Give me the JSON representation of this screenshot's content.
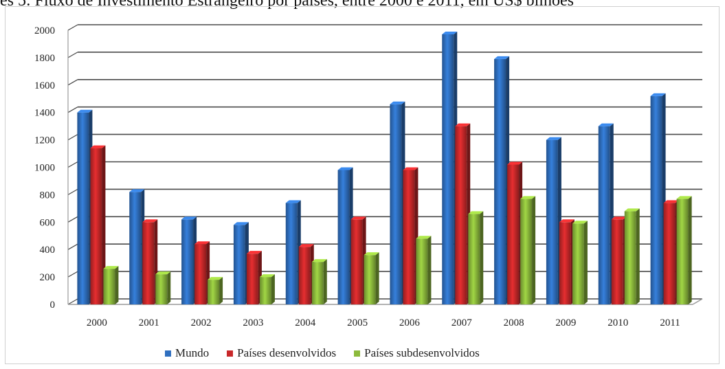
{
  "header": {
    "title_fragment": "es 5: Fluxo de Investimento Estrangeiro por países, entre 2000 e 2011, em US$ bilhões"
  },
  "colors": {
    "mundo": "#2f6fbf",
    "desenvolvidos": "#c8282a",
    "subdesenvolvidos": "#8cba3c",
    "grid": "#4a4a4a",
    "axis": "#9a9a9a"
  },
  "chart_data": {
    "type": "bar",
    "categories": [
      "2000",
      "2001",
      "2002",
      "2003",
      "2004",
      "2005",
      "2006",
      "2007",
      "2008",
      "2009",
      "2010",
      "2011"
    ],
    "series": [
      {
        "name": "Mundo",
        "values": [
          1400,
          820,
          620,
          580,
          740,
          980,
          1460,
          1970,
          1790,
          1200,
          1300,
          1520
        ]
      },
      {
        "name": "Países desenvolvidos",
        "values": [
          1140,
          600,
          440,
          370,
          420,
          620,
          980,
          1300,
          1020,
          600,
          620,
          740
        ]
      },
      {
        "name": "Países subdesenvolvidos",
        "values": [
          260,
          220,
          180,
          200,
          310,
          360,
          480,
          660,
          770,
          590,
          680,
          770
        ]
      }
    ],
    "yticks": [
      0,
      200,
      400,
      600,
      800,
      1000,
      1200,
      1400,
      1600,
      1800,
      2000
    ],
    "ylim": [
      0,
      2000
    ],
    "grid": true,
    "legend_position": "bottom"
  },
  "legend": {
    "items": [
      {
        "label": "Mundo"
      },
      {
        "label": "Países desenvolvidos"
      },
      {
        "label": "Países subdesenvolvidos"
      }
    ]
  }
}
